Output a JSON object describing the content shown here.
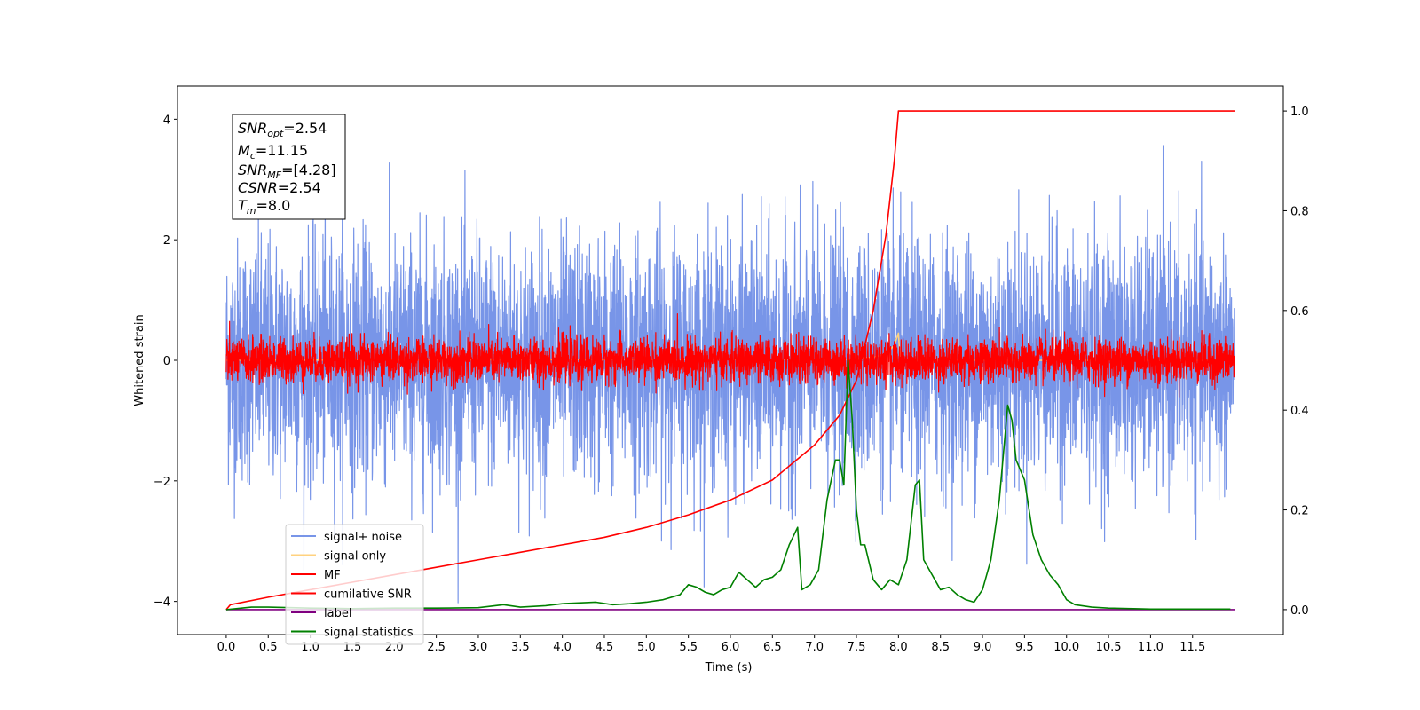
{
  "chart_data": {
    "type": "line",
    "xlabel": "Time (s)",
    "ylabel": "Whitened strain",
    "ylabel_right": "",
    "xlim": [
      -0.58,
      12.58
    ],
    "ylim": [
      -4.55,
      4.55
    ],
    "ylim_right": [
      -0.05,
      1.05
    ],
    "x_ticks": [
      "0.0",
      "0.5",
      "1.0",
      "1.5",
      "2.0",
      "2.5",
      "3.0",
      "3.5",
      "4.0",
      "4.5",
      "5.0",
      "5.5",
      "6.0",
      "6.5",
      "7.0",
      "7.5",
      "8.0",
      "8.5",
      "9.0",
      "9.5",
      "10.0",
      "10.5",
      "11.0",
      "11.5"
    ],
    "y_ticks": [
      "4",
      "2",
      "0",
      "−2",
      "−4"
    ],
    "y_ticks_right": [
      "1.0",
      "0.8",
      "0.6",
      "0.4",
      "0.2",
      "0.0"
    ],
    "info_box": {
      "snr_opt_base": "SNR",
      "snr_opt_sub": "opt",
      "snr_opt_value": "=2.54",
      "mc_base": "M",
      "mc_sub": "c",
      "mc_value": "=11.15",
      "snr_mf_base": "SNR",
      "snr_mf_sub": "MF",
      "snr_mf_value": "=[4.28]",
      "csnr_base": "CSNR",
      "csnr_value": "=2.54",
      "tm_base": "T",
      "tm_sub": "m",
      "tm_value": "=8.0"
    },
    "legend": [
      {
        "label": "signal+ noise",
        "color": "#7895e8"
      },
      {
        "label": "signal only",
        "color": "#ffd27f"
      },
      {
        "label": "MF",
        "color": "#ff0000"
      },
      {
        "label": "cumilative SNR",
        "color": "#ff0000"
      },
      {
        "label": "label",
        "color": "#800080"
      },
      {
        "label": "signal statistics",
        "color": "#008000"
      }
    ],
    "series": [
      {
        "name": "signal+ noise",
        "axis": "left",
        "style": "noise",
        "x_range": [
          0,
          12
        ],
        "std": 1.0,
        "color": "#7895e8"
      },
      {
        "name": "signal only",
        "axis": "left",
        "style": "line",
        "color": "#ffd27f",
        "x": [
          0,
          7.5,
          7.7,
          7.85,
          7.95,
          8.0,
          8.02,
          12
        ],
        "y": [
          0,
          0.02,
          0.05,
          0.1,
          0.25,
          0.45,
          0,
          0
        ]
      },
      {
        "name": "MF",
        "axis": "left",
        "style": "noise",
        "x_range": [
          0,
          12
        ],
        "std": 0.18,
        "color": "#ff0000"
      },
      {
        "name": "cumilative SNR",
        "axis": "right",
        "style": "line",
        "color": "#ff0000",
        "x": [
          0,
          0.05,
          0.5,
          1.0,
          1.5,
          2.0,
          2.5,
          3.0,
          3.5,
          4.0,
          4.5,
          5.0,
          5.5,
          6.0,
          6.5,
          7.0,
          7.3,
          7.5,
          7.7,
          7.85,
          7.95,
          8.0,
          12.0
        ],
        "y": [
          0.0,
          0.01,
          0.025,
          0.04,
          0.055,
          0.07,
          0.085,
          0.1,
          0.115,
          0.13,
          0.145,
          0.165,
          0.19,
          0.22,
          0.26,
          0.33,
          0.39,
          0.46,
          0.6,
          0.75,
          0.9,
          1.0,
          1.0
        ]
      },
      {
        "name": "label",
        "axis": "right",
        "style": "line",
        "color": "#800080",
        "x": [
          0,
          12
        ],
        "y": [
          0.0,
          0.0
        ]
      },
      {
        "name": "signal statistics",
        "axis": "right",
        "style": "line",
        "color": "#008000",
        "x": [
          0,
          0.3,
          0.5,
          1.0,
          1.5,
          2.0,
          2.5,
          3.0,
          3.3,
          3.5,
          3.8,
          4.0,
          4.4,
          4.6,
          4.8,
          5.0,
          5.2,
          5.4,
          5.5,
          5.6,
          5.7,
          5.8,
          5.9,
          6.0,
          6.1,
          6.2,
          6.3,
          6.4,
          6.5,
          6.6,
          6.7,
          6.8,
          6.85,
          6.95,
          7.05,
          7.15,
          7.25,
          7.3,
          7.35,
          7.4,
          7.45,
          7.5,
          7.55,
          7.6,
          7.7,
          7.8,
          7.9,
          8.0,
          8.1,
          8.2,
          8.25,
          8.3,
          8.4,
          8.5,
          8.6,
          8.7,
          8.8,
          8.9,
          9.0,
          9.1,
          9.2,
          9.3,
          9.35,
          9.4,
          9.5,
          9.6,
          9.7,
          9.8,
          9.9,
          10.0,
          10.1,
          10.3,
          10.5,
          10.8,
          11.0,
          11.5,
          11.95
        ],
        "y": [
          0,
          0.005,
          0.005,
          0.003,
          0.002,
          0.003,
          0.003,
          0.004,
          0.01,
          0.005,
          0.008,
          0.012,
          0.015,
          0.01,
          0.012,
          0.015,
          0.02,
          0.03,
          0.05,
          0.045,
          0.035,
          0.03,
          0.04,
          0.045,
          0.075,
          0.06,
          0.045,
          0.06,
          0.065,
          0.08,
          0.13,
          0.165,
          0.04,
          0.05,
          0.08,
          0.22,
          0.3,
          0.3,
          0.25,
          0.5,
          0.38,
          0.2,
          0.13,
          0.13,
          0.06,
          0.04,
          0.06,
          0.05,
          0.1,
          0.25,
          0.26,
          0.1,
          0.07,
          0.04,
          0.045,
          0.03,
          0.02,
          0.015,
          0.04,
          0.1,
          0.22,
          0.41,
          0.38,
          0.3,
          0.26,
          0.15,
          0.1,
          0.07,
          0.05,
          0.02,
          0.01,
          0.005,
          0.003,
          0.002,
          0.001,
          0.001,
          0.001
        ]
      }
    ]
  }
}
